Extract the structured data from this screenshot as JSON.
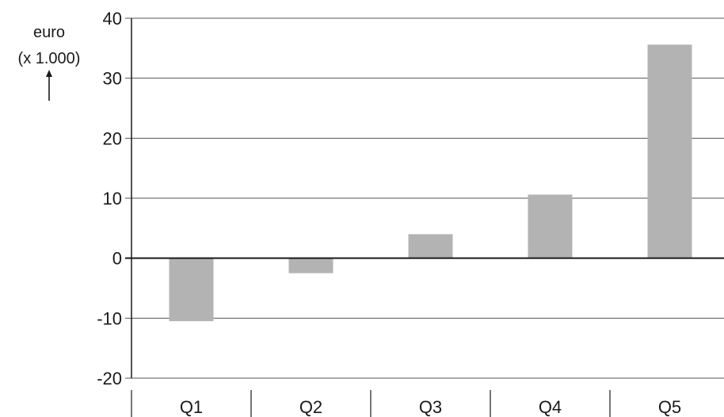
{
  "chart_data": {
    "type": "bar",
    "categories": [
      "Q1",
      "Q2",
      "Q3",
      "Q4",
      "Q5"
    ],
    "values": [
      -10.5,
      -2.5,
      4,
      10.6,
      35.6
    ],
    "title": "",
    "xlabel": "",
    "ylabel": "",
    "unit_label": {
      "line1": "euro",
      "line2": "(x 1.000)"
    },
    "ylim": [
      -20,
      40
    ],
    "yticks": [
      -20,
      -10,
      0,
      10,
      20,
      30,
      40
    ],
    "ytick_labels": [
      "-20",
      "-10",
      "0",
      "10",
      "20",
      "30",
      "40"
    ],
    "grid": true,
    "legend": "none",
    "colors": {
      "bar": "#b3b3b3",
      "grid": "#555555",
      "axis": "#1a1a1a",
      "text": "#1a1a1a"
    }
  }
}
